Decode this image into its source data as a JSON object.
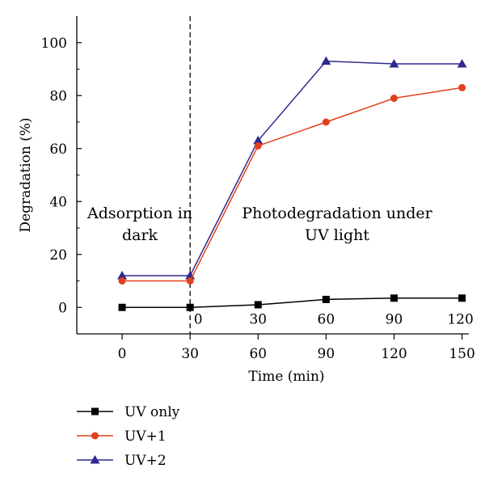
{
  "chart_data": {
    "type": "line",
    "ylabel": "Degradation (%)",
    "xlabel": "Time (min)",
    "ylim": [
      -10,
      110
    ],
    "xlim": [
      -20,
      153
    ],
    "grid": false,
    "legend_position": "bottom-left",
    "y_ticks": [
      0,
      20,
      40,
      60,
      80,
      100
    ],
    "x_ticks": [
      {
        "x": 0,
        "label": "0"
      },
      {
        "x": 30,
        "label": "30"
      },
      {
        "x": 60,
        "label": "60"
      },
      {
        "x": 90,
        "label": "90"
      },
      {
        "x": 120,
        "label": "120"
      },
      {
        "x": 150,
        "label": "150"
      }
    ],
    "inner_x_ticks": [
      {
        "x": 30,
        "label": "0"
      },
      {
        "x": 60,
        "label": "30"
      },
      {
        "x": 90,
        "label": "60"
      },
      {
        "x": 120,
        "label": "90"
      },
      {
        "x": 150,
        "label": "120"
      }
    ],
    "divider_x": 30,
    "annotations": {
      "left": [
        "Adsorption in",
        "dark"
      ],
      "right": [
        "Photodegradation under",
        "UV light"
      ]
    },
    "x": [
      0,
      30,
      60,
      90,
      120,
      150
    ],
    "series": [
      {
        "name": "UV only",
        "marker": "square",
        "color": "#000000",
        "values": [
          0,
          0,
          1,
          3,
          3.5,
          3.5
        ]
      },
      {
        "name": "UV+1",
        "marker": "circle",
        "color": "#e2401c",
        "values": [
          10,
          10,
          61,
          70,
          79,
          83
        ]
      },
      {
        "name": "UV+2",
        "marker": "triangle",
        "color": "#2e2a8f",
        "values": [
          12,
          12,
          63,
          93,
          92,
          92
        ]
      }
    ]
  }
}
